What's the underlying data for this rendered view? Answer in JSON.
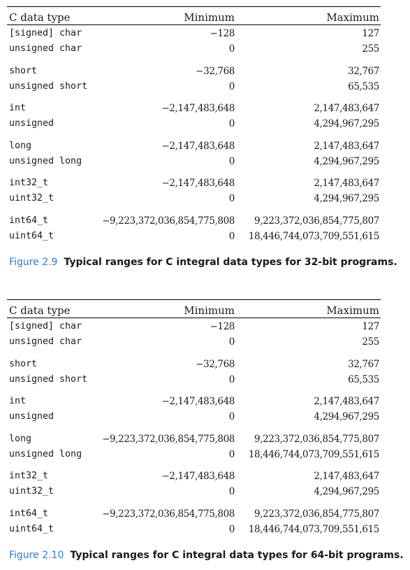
{
  "tables": [
    {
      "headers": {
        "type": "C data type",
        "min": "Minimum",
        "max": "Maximum"
      },
      "groups": [
        [
          {
            "type": "[signed] char",
            "min": "−128",
            "max": "127"
          },
          {
            "type": "unsigned char",
            "min": "0",
            "max": "255"
          }
        ],
        [
          {
            "type": "short",
            "min": "−32,768",
            "max": "32,767"
          },
          {
            "type": "unsigned short",
            "min": "0",
            "max": "65,535"
          }
        ],
        [
          {
            "type": "int",
            "min": "−2,147,483,648",
            "max": "2,147,483,647"
          },
          {
            "type": "unsigned",
            "min": "0",
            "max": "4,294,967,295"
          }
        ],
        [
          {
            "type": "long",
            "min": "−2,147,483,648",
            "max": "2,147,483,647"
          },
          {
            "type": "unsigned long",
            "min": "0",
            "max": "4,294,967,295"
          }
        ],
        [
          {
            "type": "int32_t",
            "min": "−2,147,483,648",
            "max": "2,147,483,647"
          },
          {
            "type": "uint32_t",
            "min": "0",
            "max": "4,294,967,295"
          }
        ],
        [
          {
            "type": "int64_t",
            "min": "−9,223,372,036,854,775,808",
            "max": "9,223,372,036,854,775,807"
          },
          {
            "type": "uint64_t",
            "min": "0",
            "max": "18,446,744,073,709,551,615"
          }
        ]
      ],
      "caption": {
        "number": "Figure 2.9",
        "text": "Typical ranges for C integral data types for 32-bit programs."
      }
    },
    {
      "headers": {
        "type": "C data type",
        "min": "Minimum",
        "max": "Maximum"
      },
      "groups": [
        [
          {
            "type": "[signed] char",
            "min": "−128",
            "max": "127"
          },
          {
            "type": "unsigned char",
            "min": "0",
            "max": "255"
          }
        ],
        [
          {
            "type": "short",
            "min": "−32,768",
            "max": "32,767"
          },
          {
            "type": "unsigned short",
            "min": "0",
            "max": "65,535"
          }
        ],
        [
          {
            "type": "int",
            "min": "−2,147,483,648",
            "max": "2,147,483,647"
          },
          {
            "type": "unsigned",
            "min": "0",
            "max": "4,294,967,295"
          }
        ],
        [
          {
            "type": "long",
            "min": "−9,223,372,036,854,775,808",
            "max": "9,223,372,036,854,775,807"
          },
          {
            "type": "unsigned long",
            "min": "0",
            "max": "18,446,744,073,709,551,615"
          }
        ],
        [
          {
            "type": "int32_t",
            "min": "−2,147,483,648",
            "max": "2,147,483,647"
          },
          {
            "type": "uint32_t",
            "min": "0",
            "max": "4,294,967,295"
          }
        ],
        [
          {
            "type": "int64_t",
            "min": "−9,223,372,036,854,775,808",
            "max": "9,223,372,036,854,775,807"
          },
          {
            "type": "uint64_t",
            "min": "0",
            "max": "18,446,744,073,709,551,615"
          }
        ]
      ],
      "caption": {
        "number": "Figure 2.10",
        "text": "Typical ranges for C integral data types for 64-bit programs."
      }
    }
  ]
}
